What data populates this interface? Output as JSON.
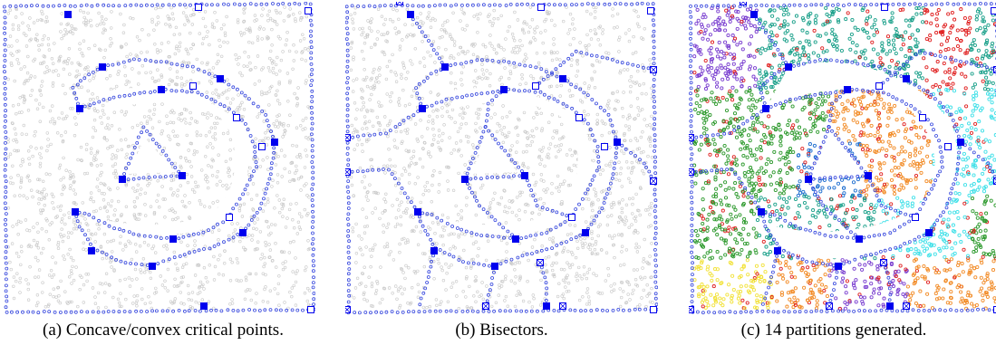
{
  "figure": {
    "captions": {
      "a": "(a) Concave/convex critical points.",
      "b": "(b) Bisectors.",
      "c": "(c) 14 partitions generated."
    }
  },
  "colors": {
    "boundary_points": "#3344dd",
    "critical_point": "#0000ee",
    "interior_points": "#c8c8c8",
    "partition_palette": [
      "#7a3fd0",
      "#1aa08a",
      "#2e9a2e",
      "#f28c28",
      "#3fe0e8",
      "#e02020",
      "#f2e23a",
      "#8b5a2b",
      "#1f6fd0",
      "#c04fc0"
    ]
  },
  "icons": [
    "filled-square-marker",
    "hollow-square-marker",
    "crossed-square-marker"
  ]
}
